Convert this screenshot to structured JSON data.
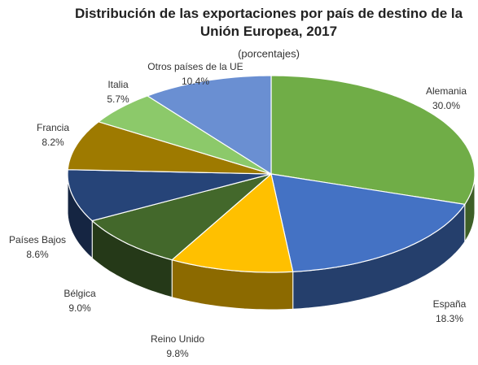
{
  "chart_data": {
    "type": "pie",
    "title": "Distribución de las exportaciones por país de destino de la Unión Europea, 2017",
    "subtitle": "(porcentajes)",
    "categories": [
      "Alemania",
      "España",
      "Reino Unido",
      "Bélgica",
      "Países Bajos",
      "Francia",
      "Italia",
      "Otros países de la UE"
    ],
    "values": [
      30.0,
      18.3,
      9.8,
      9.0,
      8.6,
      8.2,
      5.7,
      10.4
    ],
    "value_labels": [
      "30.0%",
      "18.3%",
      "9.8%",
      "9.0%",
      "8.6%",
      "8.2%",
      "5.7%",
      "10.4%"
    ],
    "colors": [
      "#70ad47",
      "#4472c4",
      "#ffc000",
      "#43682b",
      "#264478",
      "#9e7a00",
      "#8cc96a",
      "#6a8fd2"
    ]
  }
}
